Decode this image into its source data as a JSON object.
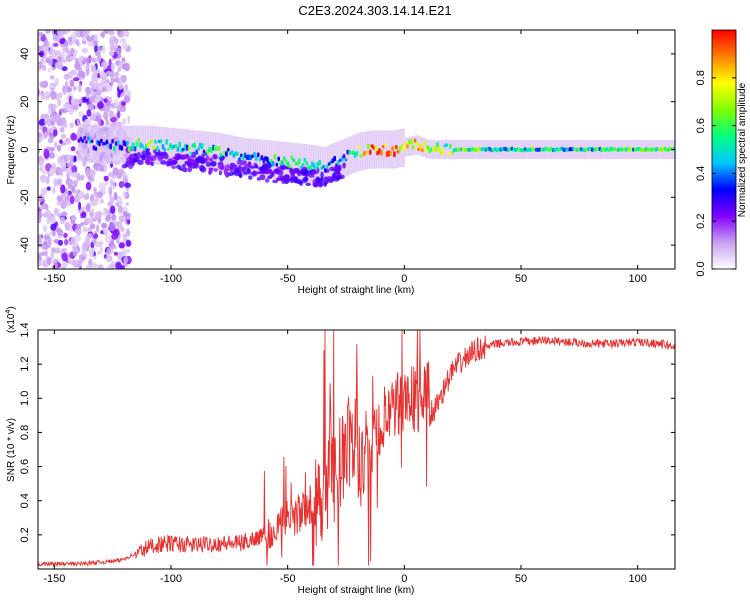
{
  "figure": {
    "title": "C2E3.2024.303.14.14.E21"
  },
  "chart_data": [
    {
      "type": "heatmap",
      "title": "C2E3.2024.303.14.14.E21",
      "xlabel": "Height of straight line (km)",
      "ylabel": "Frequency (Hz)",
      "xlim": [
        -157,
        116
      ],
      "ylim": [
        -50,
        50
      ],
      "x_ticks": [
        -150,
        -100,
        -50,
        0,
        50,
        100
      ],
      "x_tick_labels": [
        "-150",
        "-100",
        "-50",
        "0",
        "50",
        "100"
      ],
      "y_ticks": [
        -40,
        -20,
        0,
        20,
        40
      ],
      "y_tick_labels": [
        "-40",
        "-20",
        "0",
        "20",
        "40"
      ],
      "colorbar": {
        "label": "Normalized spectral amplitude",
        "range": [
          0,
          1
        ],
        "ticks": [
          0.0,
          0.2,
          0.4,
          0.6,
          0.8
        ],
        "tick_labels": [
          "0.0",
          "0.2",
          "0.4",
          "0.6",
          "0.8"
        ],
        "colormap": [
          "#ffffff",
          "#c8a0f0",
          "#8000ff",
          "#0000ff",
          "#00c8ff",
          "#00ff80",
          "#80ff00",
          "#ffff00",
          "#ff8000",
          "#ff0000"
        ]
      },
      "ridge": {
        "x": [
          -140,
          -130,
          -120,
          -110,
          -100,
          -90,
          -80,
          -70,
          -60,
          -50,
          -40,
          -35,
          -30,
          -25,
          -20,
          -15,
          -10,
          -5,
          0,
          5,
          10,
          20,
          40,
          60,
          80,
          100,
          115
        ],
        "freq": [
          3,
          2,
          2,
          2,
          1,
          0,
          -1,
          -3,
          -4,
          -5,
          -6,
          -7,
          -5,
          -3,
          -1,
          0,
          0,
          0,
          1,
          2,
          0,
          0,
          0,
          0,
          0,
          0,
          0
        ],
        "amplitude": [
          0.3,
          0.4,
          0.45,
          0.6,
          0.55,
          0.5,
          0.5,
          0.45,
          0.45,
          0.5,
          0.5,
          0.4,
          0.3,
          0.45,
          0.6,
          0.85,
          0.95,
          0.9,
          0.8,
          0.75,
          0.7,
          0.6,
          0.5,
          0.5,
          0.5,
          0.55,
          0.55
        ]
      },
      "noise_region_x": [
        -157,
        -122
      ]
    },
    {
      "type": "line",
      "xlabel": "Height of straight line (km)",
      "ylabel": "SNR (10 * v/v)",
      "y_multiplier_label": "(x10",
      "y_multiplier_exp": "4",
      "y_multiplier_close": ")",
      "xlim": [
        -157,
        116
      ],
      "ylim": [
        0,
        1.4
      ],
      "x_ticks": [
        -150,
        -100,
        -50,
        0,
        50,
        100
      ],
      "x_tick_labels": [
        "-150",
        "-100",
        "-50",
        "0",
        "50",
        "100"
      ],
      "y_ticks": [
        0.2,
        0.4,
        0.6,
        0.8,
        1.0,
        1.2,
        1.4
      ],
      "y_tick_labels": [
        "0.2",
        "0.4",
        "0.6",
        "0.8",
        "1.0",
        "1.2",
        "1.4"
      ],
      "color": "#e83030",
      "series": [
        {
          "x": [
            -157,
            -140,
            -130,
            -122,
            -115,
            -108,
            -100,
            -90,
            -80,
            -70,
            -60,
            -55,
            -50,
            -45,
            -40,
            -35,
            -30,
            -27,
            -25,
            -22,
            -20,
            -18,
            -15,
            -12,
            -10,
            -8,
            -5,
            -3,
            0,
            3,
            5,
            8,
            10,
            12,
            15,
            18,
            20,
            25,
            30,
            35,
            40,
            50,
            60,
            70,
            80,
            90,
            100,
            110,
            116
          ],
          "y": [
            0.03,
            0.03,
            0.04,
            0.05,
            0.09,
            0.14,
            0.15,
            0.14,
            0.15,
            0.15,
            0.2,
            0.25,
            0.3,
            0.32,
            0.38,
            0.45,
            0.55,
            0.65,
            0.7,
            0.75,
            0.72,
            0.6,
            0.7,
            0.78,
            0.85,
            0.88,
            0.9,
            0.95,
            1.0,
            1.02,
            0.98,
            1.0,
            1.05,
            0.9,
            1.0,
            1.08,
            1.15,
            1.22,
            1.28,
            1.3,
            1.32,
            1.33,
            1.34,
            1.33,
            1.32,
            1.32,
            1.33,
            1.32,
            1.3
          ]
        }
      ],
      "noise_amplitude": [
        {
          "x_from": -157,
          "x_to": -115,
          "amp": 0.012
        },
        {
          "x_from": -115,
          "x_to": -60,
          "amp": 0.05
        },
        {
          "x_from": -60,
          "x_to": -40,
          "amp": 0.12
        },
        {
          "x_from": -40,
          "x_to": -15,
          "amp": 0.3
        },
        {
          "x_from": -15,
          "x_to": 12,
          "amp": 0.2
        },
        {
          "x_from": 12,
          "x_to": 35,
          "amp": 0.07
        },
        {
          "x_from": 35,
          "x_to": 116,
          "amp": 0.025
        }
      ]
    }
  ]
}
